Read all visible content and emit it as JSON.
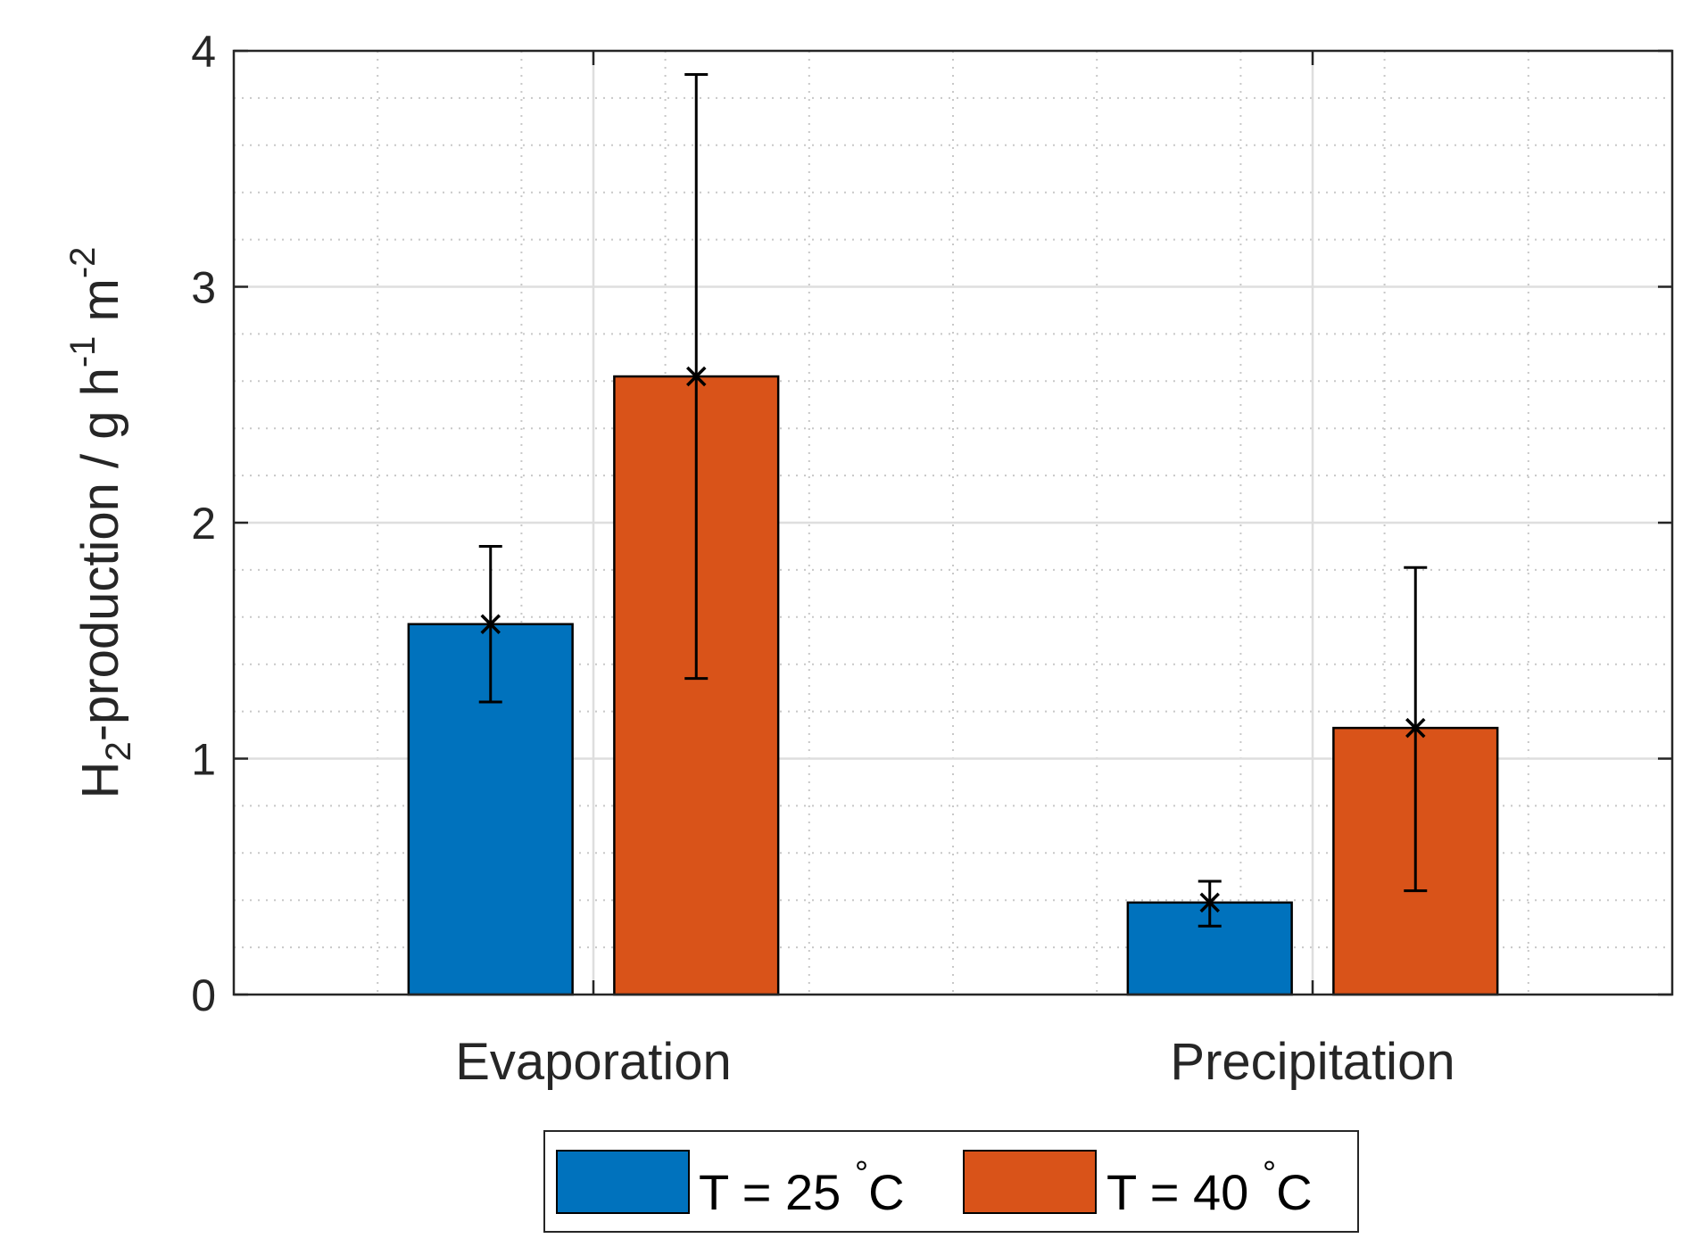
{
  "chart_data": {
    "type": "bar",
    "title": "",
    "xlabel": "",
    "ylabel": {
      "prefix": "H",
      "sub": "2",
      "middle": "-production / g h",
      "sup1": "-1",
      "space": " m",
      "sup2": "-2"
    },
    "categories": [
      "Evaporation",
      "Precipitation"
    ],
    "ylim": [
      0,
      4
    ],
    "yticks": [
      "0",
      "1",
      "2",
      "3",
      "4"
    ],
    "minor_step": 0.2,
    "grid": true,
    "series": [
      {
        "name": "T = 25 °C",
        "legend_main": "T = 25 ",
        "legend_deg": "°",
        "legend_unit": "C",
        "color": "#0072BD",
        "values": [
          1.57,
          0.39
        ],
        "err_low": [
          1.24,
          0.29
        ],
        "err_high": [
          1.9,
          0.48
        ]
      },
      {
        "name": "T = 40 °C",
        "legend_main": "T = 40 ",
        "legend_deg": "°",
        "legend_unit": "C",
        "color": "#D95319",
        "values": [
          2.62,
          1.13
        ],
        "err_low": [
          1.34,
          0.44
        ],
        "err_high": [
          3.9,
          1.81
        ]
      }
    ],
    "legend_position": "bottom-outside"
  }
}
